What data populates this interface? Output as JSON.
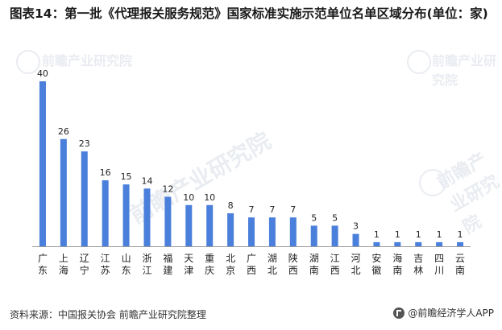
{
  "title": "图表14：第一批《代理报关服务规范》国家标准实施示范单位名单区域分布(单位：家)",
  "source": "资料来源：中国报关协会 前瞻产业研究院整理",
  "brand": "@前瞻经济学人APP",
  "watermark": {
    "text": "前瞻产业研究院"
  },
  "colors": {
    "bar": "#4a7fdb",
    "axis": "#9a9a9a",
    "text": "#222222"
  },
  "chart_data": {
    "type": "bar",
    "title": "图表14：第一批《代理报关服务规范》国家标准实施示范单位名单区域分布(单位：家)",
    "xlabel": "",
    "ylabel": "",
    "ylim": [
      0,
      40
    ],
    "grid": false,
    "legend": "none",
    "categories": [
      "广东",
      "上海",
      "辽宁",
      "江苏",
      "山东",
      "浙江",
      "福建",
      "天津",
      "重庆",
      "北京",
      "广西",
      "湖北",
      "陕西",
      "湖南",
      "江西",
      "河北",
      "安徽",
      "海南",
      "吉林",
      "四川",
      "云南"
    ],
    "values": [
      40,
      26,
      23,
      16,
      15,
      14,
      12,
      10,
      10,
      8,
      7,
      7,
      7,
      5,
      5,
      3,
      1,
      1,
      1,
      1,
      1
    ]
  }
}
